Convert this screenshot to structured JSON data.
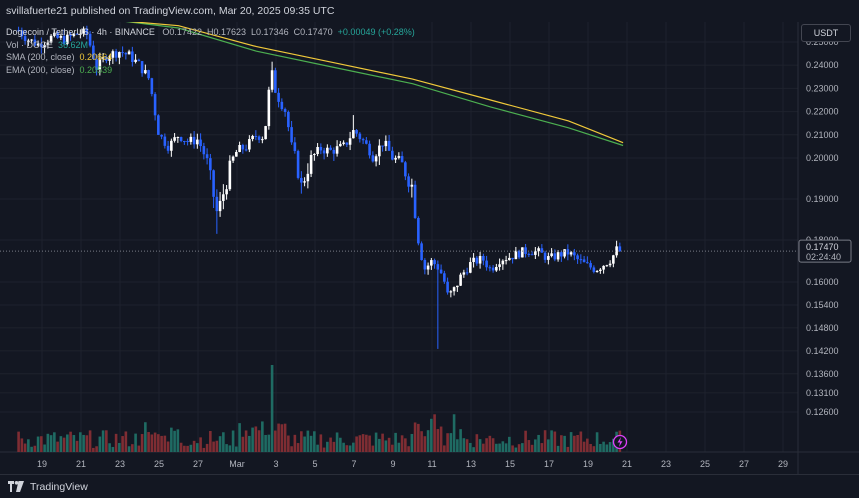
{
  "header": {
    "publisher_line": "svillafuerte21 published on TradingView.com, Mar 20, 2025 09:35 UTC"
  },
  "legend": {
    "symbol": "Dogecoin / TetherUS · 4h · BINANCE",
    "open": "O0.17422",
    "high": "H0.17623",
    "low": "L0.17346",
    "close": "C0.17470",
    "change": "+0.00049 (+0.28%)",
    "vol_label": "Vol · DOGE",
    "vol_value": "36.62M",
    "sma_label": "SMA (200, close)",
    "sma_value": "0.20664",
    "ema_label": "EMA (200, close)",
    "ema_value": "0.20539"
  },
  "currency_label": "USDT",
  "footer": {
    "brand": "TradingView"
  },
  "chart_data": {
    "type": "candlestick",
    "y_range": [
      0.1205,
      0.2586
    ],
    "y_ticks": [
      {
        "value": 0.25,
        "label": "0.25000"
      },
      {
        "value": 0.24,
        "label": "0.24000"
      },
      {
        "value": 0.23,
        "label": "0.23000"
      },
      {
        "value": 0.22,
        "label": "0.22000"
      },
      {
        "value": 0.21,
        "label": "0.21000"
      },
      {
        "value": 0.2,
        "label": "0.20000"
      },
      {
        "value": 0.19,
        "label": "0.19000"
      },
      {
        "value": 0.18,
        "label": "0.18000"
      },
      {
        "value": 0.16,
        "label": "0.16000"
      },
      {
        "value": 0.154,
        "label": "0.15400"
      },
      {
        "value": 0.148,
        "label": "0.14800"
      },
      {
        "value": 0.142,
        "label": "0.14200"
      },
      {
        "value": 0.136,
        "label": "0.13600"
      },
      {
        "value": 0.131,
        "label": "0.13100"
      },
      {
        "value": 0.126,
        "label": "0.12600"
      }
    ],
    "x_ticks": [
      {
        "day": 19,
        "label": "19"
      },
      {
        "day": 21,
        "label": "21"
      },
      {
        "day": 23,
        "label": "23"
      },
      {
        "day": 25,
        "label": "25"
      },
      {
        "day": 27,
        "label": "27"
      },
      {
        "day": 29,
        "label": "Mar"
      },
      {
        "day": 31,
        "label": "3"
      },
      {
        "day": 33,
        "label": "5"
      },
      {
        "day": 35,
        "label": "7"
      },
      {
        "day": 37,
        "label": "9"
      },
      {
        "day": 39,
        "label": "11"
      },
      {
        "day": 41,
        "label": "13"
      },
      {
        "day": 43,
        "label": "15"
      },
      {
        "day": 45,
        "label": "17"
      },
      {
        "day": 47,
        "label": "19"
      },
      {
        "day": 49,
        "label": "21"
      },
      {
        "day": 51,
        "label": "23"
      },
      {
        "day": 53,
        "label": "25"
      },
      {
        "day": 55,
        "label": "27"
      },
      {
        "day": 57,
        "label": "29"
      }
    ],
    "last_price": {
      "value": 0.1747,
      "label": "0.17470",
      "countdown": "02:24:40"
    },
    "anchors": [
      [
        17.8,
        0.255
      ],
      [
        18.3,
        0.251
      ],
      [
        18.8,
        0.249
      ],
      [
        19.5,
        0.252
      ],
      [
        20.2,
        0.251
      ],
      [
        20.9,
        0.254
      ],
      [
        21.3,
        0.2535
      ],
      [
        21.8,
        0.239
      ],
      [
        22.3,
        0.244
      ],
      [
        23.0,
        0.246
      ],
      [
        23.5,
        0.244
      ],
      [
        24.0,
        0.24
      ],
      [
        24.5,
        0.234
      ],
      [
        25.0,
        0.21
      ],
      [
        25.5,
        0.205
      ],
      [
        26.0,
        0.21
      ],
      [
        26.5,
        0.207
      ],
      [
        27.0,
        0.208
      ],
      [
        27.5,
        0.198
      ],
      [
        28.0,
        0.186
      ],
      [
        28.5,
        0.195
      ],
      [
        29.0,
        0.203
      ],
      [
        29.5,
        0.205
      ],
      [
        30.0,
        0.21
      ],
      [
        30.4,
        0.209
      ],
      [
        30.75,
        0.238
      ],
      [
        31.0,
        0.228
      ],
      [
        31.5,
        0.22
      ],
      [
        31.8,
        0.205
      ],
      [
        32.3,
        0.193
      ],
      [
        32.8,
        0.2
      ],
      [
        33.3,
        0.204
      ],
      [
        33.8,
        0.203
      ],
      [
        34.5,
        0.205
      ],
      [
        35.0,
        0.212
      ],
      [
        35.5,
        0.207
      ],
      [
        36.0,
        0.201
      ],
      [
        36.5,
        0.207
      ],
      [
        37.0,
        0.2
      ],
      [
        37.5,
        0.198
      ],
      [
        38.0,
        0.193
      ],
      [
        38.3,
        0.18
      ],
      [
        38.6,
        0.166
      ],
      [
        39.0,
        0.17
      ],
      [
        39.4,
        0.166
      ],
      [
        39.8,
        0.156
      ],
      [
        40.1,
        0.157
      ],
      [
        40.5,
        0.163
      ],
      [
        41.0,
        0.169
      ],
      [
        41.6,
        0.171
      ],
      [
        42.0,
        0.166
      ],
      [
        42.5,
        0.171
      ],
      [
        43.0,
        0.172
      ],
      [
        43.5,
        0.174
      ],
      [
        44.0,
        0.175
      ],
      [
        44.5,
        0.174
      ],
      [
        45.0,
        0.171
      ],
      [
        45.5,
        0.173
      ],
      [
        46.0,
        0.174
      ],
      [
        46.4,
        0.171
      ],
      [
        46.9,
        0.168
      ],
      [
        47.4,
        0.166
      ],
      [
        47.9,
        0.169
      ],
      [
        48.2,
        0.171
      ],
      [
        48.5,
        0.176
      ],
      [
        48.75,
        0.1747
      ]
    ],
    "sma_200": {
      "name": "SMA (200, close)",
      "color": "#f0c93a",
      "points": [
        [
          22.0,
          0.263
        ],
        [
          26.0,
          0.257
        ],
        [
          30.0,
          0.248
        ],
        [
          34.0,
          0.241
        ],
        [
          38.0,
          0.234
        ],
        [
          42.0,
          0.225
        ],
        [
          46.0,
          0.216
        ],
        [
          48.8,
          0.2066
        ]
      ]
    },
    "ema_200": {
      "name": "EMA (200, close)",
      "color": "#4caf50",
      "points": [
        [
          22.0,
          0.264
        ],
        [
          26.0,
          0.256
        ],
        [
          30.0,
          0.246
        ],
        [
          34.0,
          0.239
        ],
        [
          38.0,
          0.232
        ],
        [
          42.0,
          0.222
        ],
        [
          46.0,
          0.213
        ],
        [
          48.8,
          0.2054
        ]
      ]
    },
    "colors": {
      "up": "#ffffff",
      "down": "#2962ff",
      "vol_up": "#1f6b63",
      "vol_down": "#7f2d33",
      "background": "#131722"
    }
  }
}
